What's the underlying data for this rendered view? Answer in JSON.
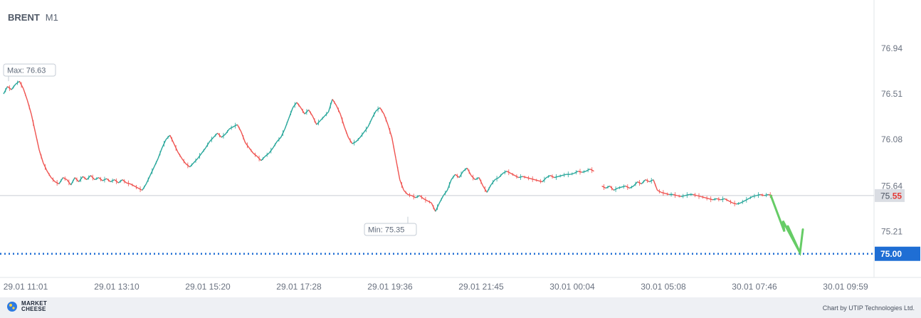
{
  "chart_data": {
    "type": "line",
    "symbol": "BRENT",
    "timeframe": "M1",
    "x_ticks": [
      "29.01 11:01",
      "29.01 13:10",
      "29.01 15:20",
      "29.01 17:28",
      "29.01 19:36",
      "29.01 21:45",
      "30.01 00:04",
      "30.01 05:08",
      "30.01 07:46",
      "30.01 09:59"
    ],
    "y_ticks": [
      76.94,
      76.51,
      76.08,
      75.64,
      75.21
    ],
    "ylim": [
      74.84,
      77.11
    ],
    "series": [
      {
        "values": [
          76.51,
          76.58,
          76.55,
          76.6,
          76.63,
          76.56,
          76.45,
          76.32,
          76.15,
          75.98,
          75.86,
          75.78,
          75.72,
          75.68,
          75.66,
          75.72,
          75.7,
          75.65,
          75.72,
          75.68,
          75.73,
          75.7,
          75.74,
          75.7,
          75.72,
          75.69,
          75.71,
          75.68,
          75.7,
          75.67,
          75.7,
          75.67,
          75.66,
          75.64,
          75.62,
          75.6,
          75.66,
          75.74,
          75.82,
          75.9,
          76.0,
          76.08,
          76.12,
          76.04,
          75.96,
          75.9,
          75.85,
          75.82,
          75.86,
          75.9,
          75.95,
          76.0,
          76.06,
          76.1,
          76.14,
          76.1,
          76.13,
          76.18,
          76.2,
          76.22,
          76.15,
          76.05,
          76.0,
          75.95,
          75.92,
          75.88,
          75.92,
          75.95,
          76.0,
          76.06,
          76.1,
          76.18,
          76.28,
          76.38,
          76.43,
          76.38,
          76.32,
          76.36,
          76.3,
          76.22,
          76.26,
          76.3,
          76.34,
          76.46,
          76.4,
          76.32,
          76.2,
          76.1,
          76.04,
          76.06,
          76.1,
          76.15,
          76.2,
          76.28,
          76.35,
          76.38,
          76.32,
          76.22,
          76.1,
          75.9,
          75.7,
          75.6,
          75.56,
          75.55,
          75.53,
          75.55,
          75.52,
          75.5,
          75.48,
          75.4,
          75.48,
          75.55,
          75.6,
          75.7,
          75.75,
          75.72,
          75.78,
          75.81,
          75.74,
          75.7,
          75.72,
          75.64,
          75.58,
          75.65,
          75.7,
          75.72,
          75.76,
          75.78,
          75.76,
          75.74,
          75.72,
          75.73,
          75.72,
          75.71,
          75.7,
          75.69,
          75.68,
          75.72,
          75.74,
          75.72,
          75.73,
          75.74,
          75.75,
          75.75,
          75.76,
          75.78,
          75.77,
          75.78,
          75.8,
          75.78,
          null,
          75.64,
          75.62,
          75.64,
          75.6,
          75.62,
          75.63,
          75.64,
          75.62,
          75.64,
          75.68,
          75.66,
          75.7,
          75.68,
          75.7,
          75.6,
          75.58,
          75.57,
          75.56,
          75.56,
          75.55,
          75.54,
          75.55,
          75.56,
          75.56,
          75.55,
          75.54,
          75.53,
          75.52,
          75.51,
          75.52,
          75.51,
          75.52,
          75.5,
          75.48,
          75.47,
          75.48,
          75.5,
          75.52,
          75.54,
          75.55,
          75.56,
          75.55,
          75.56,
          75.55
        ]
      }
    ],
    "max_label": "Max: 76.63",
    "min_label": "Min: 75.35",
    "current_price": {
      "whole": "75.",
      "frac": "55",
      "value": 75.55
    },
    "target_price": {
      "label": "75.00",
      "value": 75.0
    },
    "forecast": {
      "direction": "down"
    },
    "colors": {
      "up": "#26a69a",
      "down": "#ef5350",
      "target": "#1f6ed4",
      "arrow": "#66cc66",
      "price_red": "#e53935"
    }
  },
  "footer": {
    "brand_line1": "MARKET",
    "brand_line2": "CHEESE",
    "credit": "Chart by UTIP Technologies Ltd."
  }
}
